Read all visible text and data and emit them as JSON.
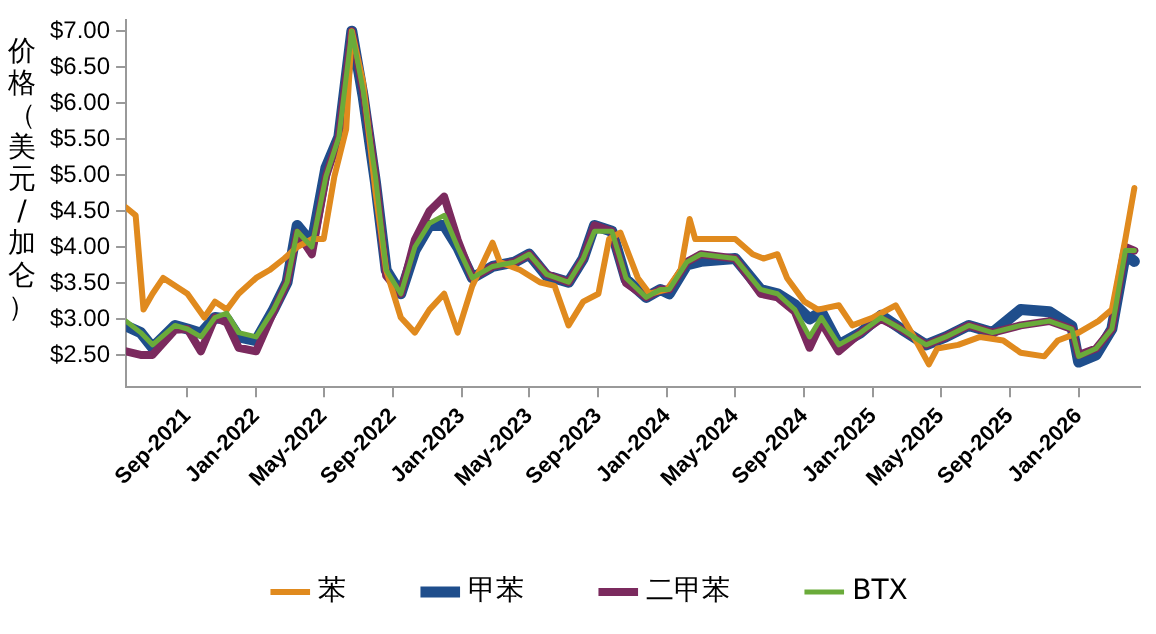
{
  "chart_data": {
    "type": "line",
    "ylabel": "价格（美元/加仑）",
    "legend": "bottom",
    "grid": false,
    "marker": "none",
    "line_style": "solid",
    "xlim": [
      "2021-05-15",
      "2026-04-20"
    ],
    "xticks": [
      {
        "value": "2021-09",
        "label": "Sep-2021"
      },
      {
        "value": "2022-01",
        "label": "Jan-2022"
      },
      {
        "value": "2022-05",
        "label": "May-2022"
      },
      {
        "value": "2022-09",
        "label": "Sep-2022"
      },
      {
        "value": "2023-01",
        "label": "Jan-2023"
      },
      {
        "value": "2023-05",
        "label": "May-2023"
      },
      {
        "value": "2023-09",
        "label": "Sep-2023"
      },
      {
        "value": "2024-01",
        "label": "Jan-2024"
      },
      {
        "value": "2024-05",
        "label": "May-2024"
      },
      {
        "value": "2024-09",
        "label": "Sep-2024"
      },
      {
        "value": "2025-01",
        "label": "Jan-2025"
      },
      {
        "value": "2025-05",
        "label": "May-2025"
      },
      {
        "value": "2025-09",
        "label": "Sep-2025"
      },
      {
        "value": "2026-01",
        "label": "Jan-2026"
      }
    ],
    "ylim": [
      2.05,
      7.15
    ],
    "yticks": [
      {
        "value": 2.5,
        "label": "$2.50"
      },
      {
        "value": 3,
        "label": "$3.00"
      },
      {
        "value": 3.5,
        "label": "$3.50"
      },
      {
        "value": 4,
        "label": "$4.00"
      },
      {
        "value": 4.5,
        "label": "$4.50"
      },
      {
        "value": 5,
        "label": "$5.00"
      },
      {
        "value": 5.5,
        "label": "$5.50"
      },
      {
        "value": 6,
        "label": "$6.00"
      },
      {
        "value": 6.5,
        "label": "$6.50"
      },
      {
        "value": 7,
        "label": "$7.00"
      }
    ],
    "x": [
      "2021-05-15",
      "2021-06-10",
      "2021-07-01",
      "2021-08-10",
      "2021-09-01",
      "2021-09-25",
      "2021-10-20",
      "2021-11-10",
      "2021-12-01",
      "2022-01-01",
      "2022-02-01",
      "2022-02-25",
      "2022-03-15",
      "2022-04-10",
      "2022-05-05",
      "2022-05-28",
      "2022-06-20",
      "2022-07-10",
      "2022-08-01",
      "2022-08-20",
      "2022-09-15",
      "2022-10-10",
      "2022-11-05",
      "2022-12-01",
      "2022-12-25",
      "2023-01-20",
      "2023-02-25",
      "2023-04-05",
      "2023-05-01",
      "2023-06-01",
      "2023-07-10",
      "2023-08-05",
      "2023-08-25",
      "2023-09-25",
      "2023-10-20",
      "2023-11-25",
      "2023-12-20",
      "2024-01-05",
      "2024-02-05",
      "2024-03-01",
      "2024-05-01",
      "2024-06-15",
      "2024-07-15",
      "2024-08-15",
      "2024-09-10",
      "2024-10-01",
      "2024-11-01",
      "2024-12-10",
      "2025-01-15",
      "2025-02-20",
      "2025-04-05",
      "2025-05-10",
      "2025-06-20",
      "2025-08-01",
      "2025-09-20",
      "2025-11-10",
      "2025-12-20",
      "2026-01-01",
      "2026-02-01",
      "2026-03-01",
      "2026-03-25",
      "2026-04-10"
    ],
    "series": [
      {
        "name": "苯",
        "color": "#e08a1e",
        "x": [
          "2021-05-15",
          "2021-06-01",
          "2021-06-15",
          "2021-07-01",
          "2021-07-20",
          "2021-09-01",
          "2021-10-01",
          "2021-10-20",
          "2021-11-10",
          "2021-12-01",
          "2022-01-01",
          "2022-01-25",
          "2022-02-20",
          "2022-03-15",
          "2022-04-10",
          "2022-05-01",
          "2022-05-20",
          "2022-06-10",
          "2022-06-20",
          "2022-07-10",
          "2022-08-01",
          "2022-08-20",
          "2022-09-15",
          "2022-10-10",
          "2022-11-05",
          "2022-12-01",
          "2022-12-25",
          "2023-01-20",
          "2023-02-25",
          "2023-03-10",
          "2023-04-15",
          "2023-05-20",
          "2023-06-15",
          "2023-07-10",
          "2023-08-05",
          "2023-09-01",
          "2023-09-20",
          "2023-10-10",
          "2023-11-10",
          "2023-12-01",
          "2024-01-01",
          "2024-01-25",
          "2024-02-10",
          "2024-02-20",
          "2024-03-25",
          "2024-05-01",
          "2024-06-01",
          "2024-06-20",
          "2024-07-15",
          "2024-08-01",
          "2024-09-01",
          "2024-09-25",
          "2024-11-01",
          "2024-11-25",
          "2025-01-01",
          "2025-02-10",
          "2025-03-10",
          "2025-04-10",
          "2025-04-25",
          "2025-06-01",
          "2025-07-10",
          "2025-08-20",
          "2025-09-20",
          "2025-11-01",
          "2025-11-25",
          "2026-01-01",
          "2026-02-05",
          "2026-03-01",
          "2026-03-25",
          "2026-04-10"
        ],
        "values": [
          4.55,
          4.44,
          3.13,
          3.35,
          3.57,
          3.35,
          3.02,
          3.24,
          3.13,
          3.35,
          3.57,
          3.68,
          3.84,
          4.0,
          4.11,
          4.11,
          4.98,
          5.64,
          7.0,
          6.29,
          4.77,
          3.68,
          3.02,
          2.81,
          3.13,
          3.35,
          2.81,
          3.46,
          4.06,
          3.79,
          3.68,
          3.51,
          3.46,
          2.91,
          3.24,
          3.35,
          4.11,
          4.2,
          3.57,
          3.35,
          3.41,
          3.68,
          4.39,
          4.11,
          4.11,
          4.11,
          3.9,
          3.84,
          3.9,
          3.57,
          3.24,
          3.13,
          3.19,
          2.91,
          3.02,
          3.19,
          2.81,
          2.37,
          2.59,
          2.64,
          2.75,
          2.7,
          2.53,
          2.48,
          2.7,
          2.81,
          2.97,
          3.13,
          4.11,
          4.82
        ]
      },
      {
        "name": "甲苯",
        "color": "#1f4e8c",
        "values": [
          2.9,
          2.81,
          2.6,
          2.91,
          2.86,
          2.8,
          3.02,
          3.0,
          2.75,
          2.7,
          3.13,
          3.51,
          4.3,
          4.05,
          5.1,
          5.53,
          7.0,
          6.1,
          4.9,
          3.68,
          3.35,
          3.95,
          4.3,
          4.3,
          4.0,
          3.57,
          3.73,
          3.79,
          3.9,
          3.6,
          3.51,
          3.84,
          4.3,
          4.22,
          3.55,
          3.3,
          3.41,
          3.35,
          3.75,
          3.8,
          3.84,
          3.41,
          3.35,
          3.2,
          3.0,
          3.1,
          2.64,
          2.81,
          3.05,
          2.86,
          2.64,
          2.75,
          2.91,
          2.81,
          3.13,
          3.1,
          2.9,
          2.4,
          2.5,
          2.86,
          3.9,
          3.8
        ]
      },
      {
        "name": "二甲苯",
        "color": "#7b2a5e",
        "values": [
          2.55,
          2.5,
          2.5,
          2.85,
          2.86,
          2.55,
          3.02,
          2.95,
          2.6,
          2.55,
          3.1,
          3.51,
          4.2,
          3.9,
          4.98,
          5.53,
          7.0,
          6.18,
          4.98,
          3.6,
          3.35,
          4.1,
          4.5,
          4.7,
          4.1,
          3.57,
          3.73,
          3.79,
          3.9,
          3.62,
          3.51,
          3.84,
          4.3,
          4.22,
          3.5,
          3.3,
          3.41,
          3.41,
          3.79,
          3.9,
          3.84,
          3.35,
          3.3,
          3.1,
          2.6,
          2.95,
          2.55,
          2.81,
          3.0,
          2.86,
          2.64,
          2.75,
          2.91,
          2.81,
          2.91,
          2.97,
          2.86,
          2.5,
          2.59,
          2.86,
          4.0,
          3.95
        ]
      },
      {
        "name": "BTX",
        "color": "#6aab3a",
        "values": [
          2.97,
          2.81,
          2.64,
          2.91,
          2.86,
          2.75,
          3.02,
          3.08,
          2.81,
          2.75,
          3.13,
          3.51,
          4.22,
          4.0,
          4.98,
          5.53,
          7.0,
          6.18,
          4.98,
          3.68,
          3.35,
          4.0,
          4.33,
          4.44,
          4.0,
          3.57,
          3.73,
          3.79,
          3.9,
          3.62,
          3.51,
          3.84,
          4.22,
          4.22,
          3.57,
          3.3,
          3.41,
          3.41,
          3.79,
          3.9,
          3.84,
          3.41,
          3.35,
          3.13,
          2.75,
          3.02,
          2.64,
          2.81,
          3.02,
          2.86,
          2.64,
          2.75,
          2.91,
          2.81,
          2.91,
          2.97,
          2.86,
          2.48,
          2.59,
          2.86,
          3.95,
          3.95
        ]
      }
    ]
  }
}
